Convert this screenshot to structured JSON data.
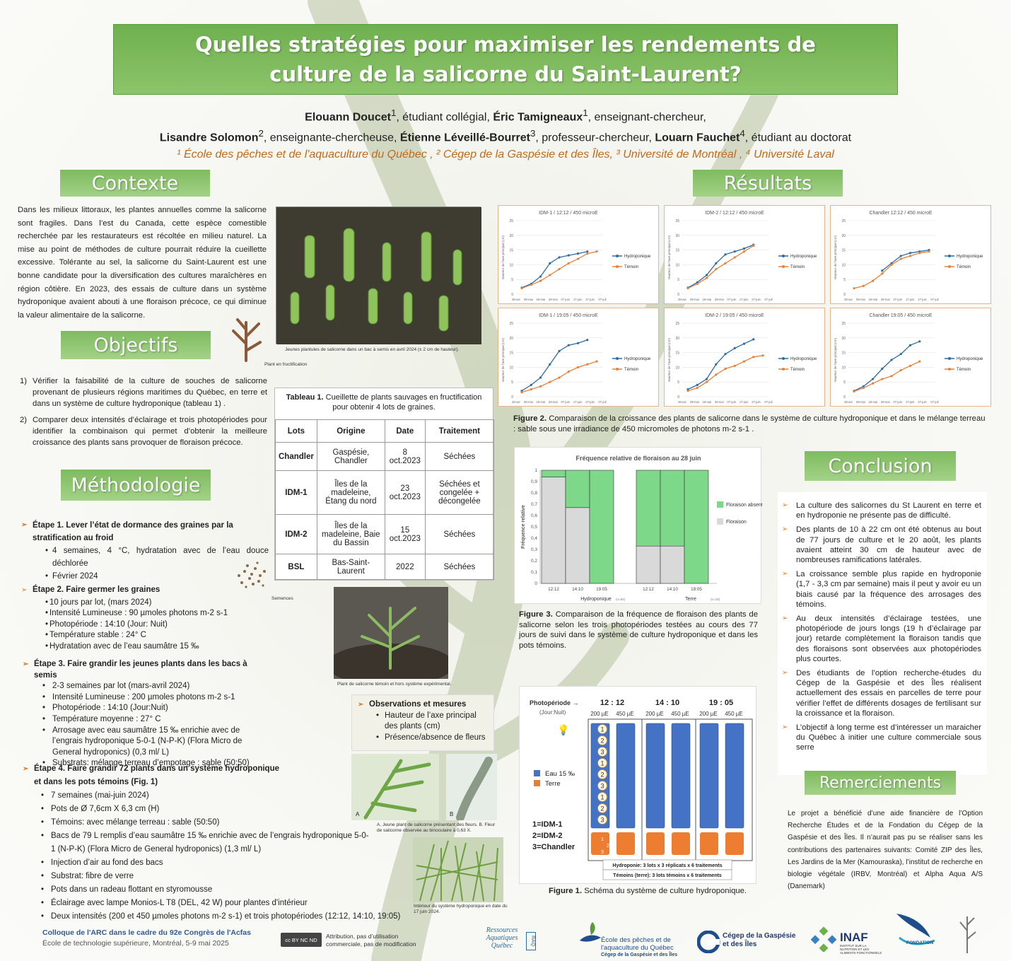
{
  "title": "Quelles stratégies pour maximiser les rendements de culture de la salicorne du Saint-Laurent?",
  "authors": {
    "line1": [
      {
        "name": "Elouann Doucet",
        "sup": "1",
        "role": ", étudiant collégial, "
      },
      {
        "name": "Éric Tamigneaux",
        "sup": "1",
        "role": ", enseignant-chercheur,"
      }
    ],
    "line2": [
      {
        "name": "Lisandre Solomon",
        "sup": "2",
        "role": ", enseignante-chercheuse, "
      },
      {
        "name": "Étienne Léveillé-Bourret",
        "sup": "3",
        "role": ", professeur-chercheur, "
      },
      {
        "name": "Louarn Fauchet",
        "sup": "4",
        "role": ", étudiant au doctorat"
      }
    ],
    "affiliations": "¹ École des pêches et de l'aquaculture du Québec , ² Cégep de la Gaspésie et des Îles, ³ Université de Montréal , ⁴ Université Laval"
  },
  "sections": {
    "contexte": "Contexte",
    "objectifs": "Objectifs",
    "methodologie": "Méthodologie",
    "resultats": "Résultats",
    "conclusion": "Conclusion",
    "remerciements": "Remerciements"
  },
  "contexte_text": "Dans les milieux littoraux, les plantes annuelles comme la salicorne sont fragiles. Dans l’est du Canada, cette espèce comestible recherchée par les restaurateurs est récoltée en milieu naturel. La mise au point de méthodes de culture pourrait réduire la cueillette excessive. Tolérante au sel, la salicorne du Saint-Laurent est une bonne candidate pour la diversification des cultures maraîchères en région côtière. En 2023, des essais de culture dans un système hydroponique avaient abouti à une floraison précoce, ce qui diminue la valeur alimentaire de la salicorne.",
  "photo_caption_seedlings": "Jeunes plantules de salicorne dans un bac à semis en avril 2024 (± 2 cm de hauteur).",
  "caption_flowering_plant": "Plant en fructification",
  "objectifs": [
    {
      "num": "1)",
      "text": "Vérifier la faisabilité de la culture de souches de salicorne provenant de plusieurs régions maritimes du Québec, en terre et dans un système de culture hydroponique (tableau 1) ."
    },
    {
      "num": "2)",
      "text": "Comparer deux intensités d’éclairage et trois photopériodes pour identifier la combinaison qui permet d’obtenir la meilleure croissance des plants sans provoquer de floraison précoce."
    }
  ],
  "table1": {
    "caption_bold": "Tableau 1.",
    "caption": " Cueillette de plants sauvages en fructification pour obtenir 4 lots de graines.",
    "headers": [
      "Lots",
      "Origine",
      "Date",
      "Traitement"
    ],
    "rows": [
      [
        "Chandler",
        "Gaspésie, Chandler",
        "8 oct.2023",
        "Séchées"
      ],
      [
        "IDM-1",
        "Îles de la madeleine, Étang du nord",
        "23 oct.2023",
        "Séchées et congelée + décongelée"
      ],
      [
        "IDM-2",
        "Îles de la madeleine, Baie du Bassin",
        "15 oct.2023",
        "Séchées"
      ],
      [
        "BSL",
        "Bas-Saint-Laurent",
        "2022",
        "Séchées"
      ]
    ]
  },
  "methodo": {
    "etape1_title": "Étape 1. Lever l’état de dormance des graines par la stratification au froid",
    "etape1_items": [
      "4 semaines, 4 °C, hydratation avec de l’eau douce déchlorée",
      "Février 2024"
    ],
    "etape2_title_bold": "Étape 2",
    "etape2_title": ". Faire germer les graines",
    "etape2_items": [
      "10 jours par lot, (mars 2024)",
      "Intensité Lumineuse : 90 µmoles photons m-2 s-1",
      "Photopériode : 14:10 (Jour: Nuit)",
      "Température stable : 24° C",
      "Hydratation avec de l’eau saumâtre 15 ‰"
    ],
    "semences_caption": "Semences",
    "etape3_title": "Étape 3. Faire grandir les jeunes plants dans les bacs à semis",
    "etape3_items": [
      "2-3 semaines par lot (mars-avril 2024)",
      "Intensité Lumineuse : 200 µmoles photons m-2 s-1",
      "Photopériode : 14:10 (Jour:Nuit)",
      "Température moyenne : 27° C",
      "Arrosage avec eau saumâtre 15 ‰ enrichie avec de l’engrais hydroponique 5-0-1 (N-P-K) (Flora Micro de General hydroponics) (0,3 ml/ L)",
      "Substrats: mélange terreau d’empotage : sable (50:50)"
    ],
    "etape4_title": "Étape 4. Faire grandir 72 plants dans un système hydroponique et dans les pots témoins (Fig. 1)",
    "etape4_items": [
      "7 semaines (mai-juin 2024)",
      "Pots de Ø 7,6cm X 6,3 cm (H)",
      "Témoins: avec mélange terreau : sable (50:50)",
      "Bacs de 79 L remplis d’eau saumâtre 15 ‰ enrichie avec de l’engrais hydroponique 5-0-1 (N-P-K) (Flora Micro de General hydroponics) (1,3 ml/ L)",
      "Injection d’air au fond des bacs",
      "Substrat: fibre de verre",
      "Pots dans un radeau flottant en styromousse",
      "Éclairage avec lampe Monios-L T8 (DEL, 42 W) pour plantes d'intérieur",
      "Deux intensités (200 et 450 µmoles photons m-2 s-1) et trois photopériodes (12:12, 14:10, 19:05)"
    ]
  },
  "caption_temoin_plant": "Plant de salicorne témoin et hors système expérimental.",
  "observations": {
    "title": "Observations et mesures",
    "items": [
      "Hauteur de l’axe principal des plants (cm)",
      "Présence/absence de fleurs"
    ]
  },
  "caption_flower_AB": "A. Jeune plant de salicorne présentant des fleurs. B. Fleur de salicorne observée au binoculaire à 0,63 X.",
  "caption_hydro": "Intérieur du système hydroponique en date du 17 juin 2024.",
  "growth_charts": {
    "x_ticks": [
      "28-avr",
      "08-mai",
      "18-mai",
      "28-mai",
      "07-juin",
      "17-juin",
      "27-juin",
      "07-juil"
    ],
    "y_label": "Hauteur de l'axe principal (cm)",
    "y_ticks": [
      "0",
      "5",
      "10",
      "15",
      "20",
      "25"
    ],
    "legend": [
      "Hydroponique",
      "Témoin"
    ],
    "colors": {
      "hydro": "#2e6da4",
      "temoin": "#e8823a"
    }
  },
  "chart_data": [
    {
      "type": "line",
      "title": "IDM-1 / 12:12 / 450 microE",
      "x": [
        "05-02",
        "05-09",
        "05-16",
        "05-23",
        "05-30",
        "06-06",
        "06-13",
        "06-20",
        "06-27"
      ],
      "ylim": [
        0,
        25
      ],
      "series": [
        {
          "name": "Hydroponique",
          "values": [
            2.2,
            3.5,
            6,
            10.5,
            12.5,
            13.2,
            13.8,
            14.5,
            null
          ]
        },
        {
          "name": "Témoin",
          "values": [
            2,
            3.2,
            4.5,
            6.5,
            8.5,
            10.5,
            12,
            13.8,
            14.5
          ]
        }
      ]
    },
    {
      "type": "line",
      "title": "IDM-2 / 12:12 / 450 microE",
      "x": [
        "05-02",
        "05-09",
        "05-16",
        "05-23",
        "05-30",
        "06-06",
        "06-13",
        "06-20",
        "06-27"
      ],
      "ylim": [
        0,
        25
      ],
      "series": [
        {
          "name": "Hydroponique",
          "values": [
            2.2,
            4,
            6.5,
            10.5,
            13.5,
            14.5,
            15.5,
            16.8,
            null
          ]
        },
        {
          "name": "Témoin",
          "values": [
            2,
            3.5,
            5.5,
            8.5,
            10.5,
            12.5,
            14.5,
            16.5,
            null
          ]
        }
      ]
    },
    {
      "type": "line",
      "title": "Chandler 12:12 / 450 microE",
      "x": [
        "05-02",
        "05-09",
        "05-16",
        "05-23",
        "05-30",
        "06-06",
        "06-13",
        "06-20",
        "06-27"
      ],
      "ylim": [
        0,
        25
      ],
      "series": [
        {
          "name": "Hydroponique",
          "values": [
            null,
            null,
            null,
            8,
            10.5,
            13,
            14,
            14.5,
            15
          ]
        },
        {
          "name": "Témoin",
          "values": [
            2,
            2.8,
            4.5,
            7,
            10,
            12,
            13,
            14,
            14.5
          ]
        }
      ]
    },
    {
      "type": "line",
      "title": "IDM-1 / 19:05 / 450 microE",
      "x": [
        "05-02",
        "05-09",
        "05-16",
        "05-23",
        "05-30",
        "06-06",
        "06-13",
        "06-20",
        "06-27"
      ],
      "ylim": [
        0,
        25
      ],
      "series": [
        {
          "name": "Hydroponique",
          "values": [
            2,
            4,
            6.5,
            11,
            15.5,
            17.5,
            18.2,
            19.3,
            null
          ]
        },
        {
          "name": "Témoin",
          "values": [
            1.5,
            2.5,
            3.5,
            5,
            6.5,
            8.5,
            10,
            11,
            12
          ]
        }
      ]
    },
    {
      "type": "line",
      "title": "IDM-2 / 19:05 / 450 microE",
      "x": [
        "05-02",
        "05-09",
        "05-16",
        "05-23",
        "05-30",
        "06-06",
        "06-13",
        "06-20",
        "06-27"
      ],
      "ylim": [
        0,
        25
      ],
      "series": [
        {
          "name": "Hydroponique",
          "values": [
            2.5,
            4,
            6,
            11,
            14.5,
            16.5,
            18,
            19.5,
            null
          ]
        },
        {
          "name": "Témoin",
          "values": [
            2,
            3,
            5,
            7.5,
            9.5,
            10.5,
            12,
            13.5,
            14
          ]
        }
      ]
    },
    {
      "type": "line",
      "title": "Chandler 19:05 / 450 microE",
      "x": [
        "05-02",
        "05-09",
        "05-16",
        "05-23",
        "05-30",
        "06-06",
        "06-13",
        "06-20",
        "06-27"
      ],
      "ylim": [
        0,
        25
      ],
      "series": [
        {
          "name": "Hydroponique",
          "values": [
            2,
            3.5,
            6,
            9.5,
            12.5,
            14.5,
            17.5,
            18.8,
            null
          ]
        },
        {
          "name": "Témoin",
          "values": [
            1.8,
            3,
            4.5,
            6,
            7,
            9,
            10.5,
            12,
            null
          ]
        }
      ]
    },
    {
      "type": "bar",
      "title": "Fréquence relative de floraison au 28 juin",
      "categories": [
        "Hydroponique 12:12",
        "Hydroponique 14:10",
        "Hydroponique 19:05",
        "Terre 12:12",
        "Terre 14:10",
        "Terre 19:05"
      ],
      "ylabel": "Fréquence relative",
      "ylim": [
        0,
        1
      ],
      "stacked": true,
      "series": [
        {
          "name": "Floraison absente",
          "values": [
            0.06,
            0.33,
            1,
            0.67,
            0.67,
            1
          ]
        },
        {
          "name": "Floraison",
          "values": [
            0.94,
            0.67,
            0,
            0.33,
            0.33,
            0
          ]
        }
      ]
    }
  ],
  "figure2_caption_bold": "Figure 2.",
  "figure2_caption": " Comparaison de la croissance des plants de salicorne dans le système de culture hydroponique et dans le mélange terreau : sable sous une irradiance de 450 micromoles de photons m-2 s-1 .",
  "floraison_chart": {
    "title": "Fréquence relative de floraison au 28 juin",
    "y_ticks": [
      "0",
      "0,1",
      "0,2",
      "0,3",
      "0,4",
      "0,5",
      "0,6",
      "0,7",
      "0,8",
      "0,9",
      "1"
    ],
    "ylabel": "Fréquence relative",
    "bar_labels": [
      "12:12",
      "14:10",
      "19:05",
      "12:12",
      "14:10",
      "19:05"
    ],
    "groups": [
      {
        "label": "Hydroponique",
        "n": "(n=54)"
      },
      {
        "label": "Terre",
        "n": "(n=18)"
      }
    ],
    "legend": [
      "Floraison absente",
      "Floraison"
    ],
    "colors": {
      "absente": "#7ed88a",
      "floraison": "#d9d9d9"
    }
  },
  "figure3_caption_bold": "Figure 3.",
  "figure3_caption": " Comparaison de la fréquence de floraison des plants de salicorne selon les trois photopériodes testées au cours des 77 jours de suivi dans le système de culture hydroponique et dans les pots témoins.",
  "schema": {
    "photoperiode_label": "Photopériode →",
    "jour_nuit": "(Jour:Nuit)",
    "periods": [
      "12 : 12",
      "14 : 10",
      "19 : 05"
    ],
    "intensities": [
      "200 µE",
      "450 µE"
    ],
    "lot_nums": [
      "1",
      "2",
      "3",
      "1",
      "2",
      "3",
      "1",
      "2",
      "3"
    ],
    "legend_eau": "Eau 15 ‰",
    "legend_terre": "Terre",
    "key_lines": [
      "1=IDM-1",
      "2=IDM-2",
      "3=Chandler"
    ],
    "note1": "Hydroponie: 3 lots x 3 réplicats x 6 traitements",
    "note2": "Témoins (terre): 3 lots témoins x 6 traitements",
    "colors": {
      "eau": "#4472c4",
      "terre": "#ed7d31"
    }
  },
  "figure1_caption_bold": "Figure 1.",
  "figure1_caption": " Schéma du système de culture hydroponique.",
  "conclusion": [
    "La culture des salicornes du St Laurent en terre et en hydroponie ne présente pas de difficulté.",
    "Des plants de 10 à 22 cm ont été obtenus au bout de 77 jours de culture et le 20 août, les plants avaient atteint 30 cm de hauteur avec de nombreuses ramifications latérales.",
    "La croissance semble plus rapide en hydroponie (1,7 - 3,3 cm par semaine) mais il peut y avoir eu un biais causé par la fréquence des arrosages des témoins.",
    "Au deux intensités d’éclairage testées, une photopériode de jours longs (19 h d’éclairage par jour) retarde complètement la floraison tandis que des floraisons sont observées aux photopériodes plus courtes.",
    "Des étudiants de l’option recherche-études du Cégep de la Gaspésie et des Îles réalisent actuellement des essais en parcelles de terre pour vérifier l’effet de différents dosages de fertilisant sur la croissance et la floraison.",
    "L’objectif à long terme est d’intéresser un maraicher du Québec à initier une culture commerciale sous serre"
  ],
  "remerciements_text": "Le projet a bénéficié d’une aide financière de l’Option Recherche Études et de la Fondation du Cégep de la Gaspésie et des Îles. Il n’aurait pas pu se réaliser sans les contributions des partenaires suivants: Comité ZIP des Îles, Les Jardins de la Mer (Kamouraska), l’institut de recherche en biologie végétale (IRBV, Montréal) et Alpha Aqua A/S (Danemark)",
  "footer": {
    "colloque": "Colloque de l'ARC dans le cadre du 92e Congrès de l'Acfas",
    "lieu": "École de technologie supérieure, Montréal, 5-9 mai 2025",
    "license": "Attribution, pas d’utilisation commerciale, pas de modification",
    "cc_badge": "cc BY NC ND",
    "logo_ressources": "Ressources Aquatiques Québec",
    "logo_rq": "RAQ",
    "logo_ecole": "École des pêches et de l'aquaculture du Québec",
    "logo_ecole_sub": "Cégep de la Gaspésie et des Îles",
    "logo_cegep": "Cégep de la Gaspésie et des Îles",
    "logo_inaf": "INAF",
    "logo_inaf_sub": "INSTITUT SUR LA NUTRITION ET LES ALIMENTS FONCTIONNELS",
    "logo_fondation": "FONDATION"
  }
}
